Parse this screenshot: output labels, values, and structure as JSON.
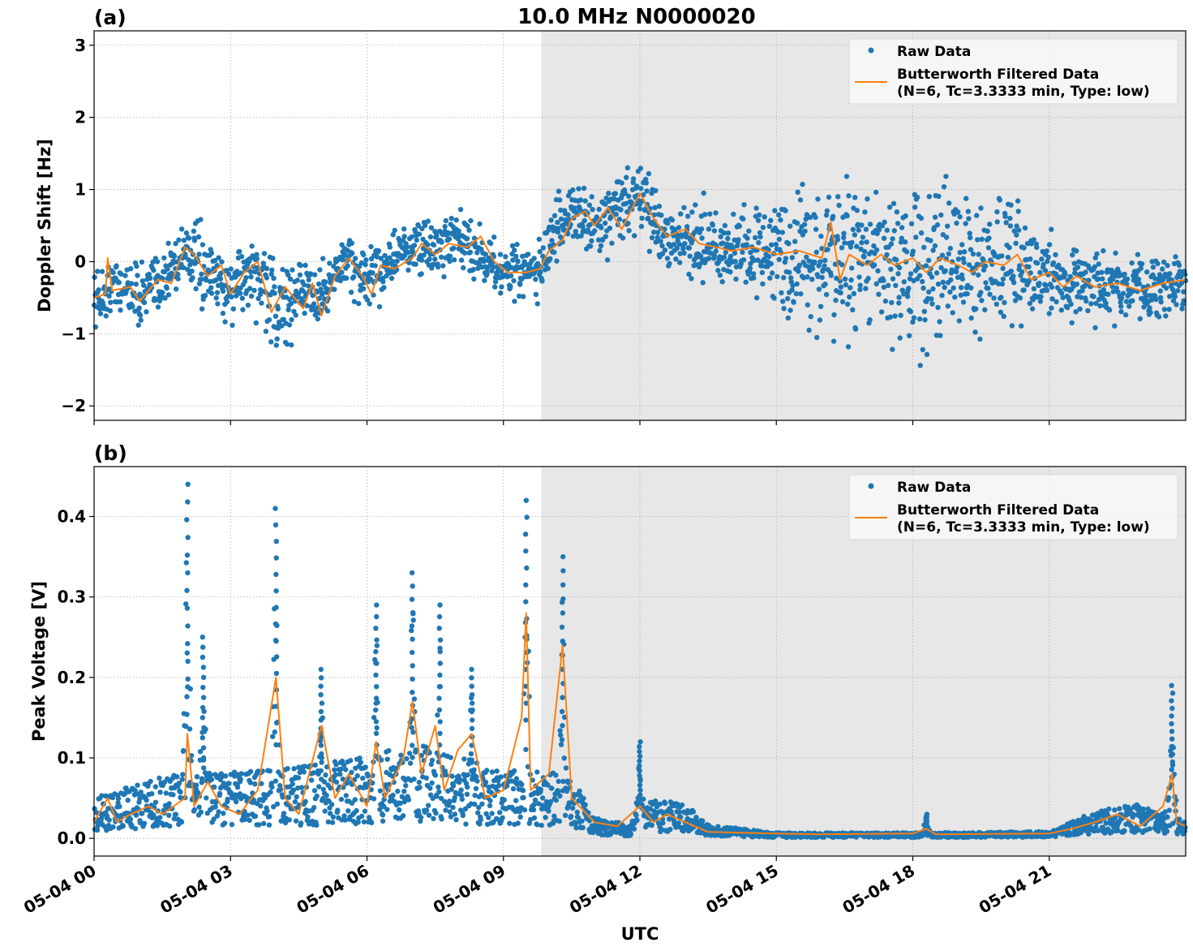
{
  "figure": {
    "title": "10.0 MHz N0000020",
    "xlabel": "UTC"
  },
  "colors": {
    "raw": "#1f77b4",
    "filtered": "#ff7f0e",
    "shade": "#e7e7e7",
    "grid": "#b0b0b0"
  },
  "legend": {
    "raw_label": "Raw Data",
    "filtered_label_line1": "Butterworth Filtered Data",
    "filtered_label_line2": "(N=6, Tc=3.3333 min, Type: low)"
  },
  "x_ticks": [
    {
      "hour": 0,
      "label": "05-04 00"
    },
    {
      "hour": 3,
      "label": "05-04 03"
    },
    {
      "hour": 6,
      "label": "05-04 06"
    },
    {
      "hour": 9,
      "label": "05-04 09"
    },
    {
      "hour": 12,
      "label": "05-04 12"
    },
    {
      "hour": 15,
      "label": "05-04 15"
    },
    {
      "hour": 18,
      "label": "05-04 18"
    },
    {
      "hour": 21,
      "label": "05-04 21"
    }
  ],
  "chart_data": [
    {
      "type": "scatter",
      "panel_label": "(a)",
      "ylabel": "Doppler Shift [Hz]",
      "xlim_hours": [
        0,
        24
      ],
      "ylim": [
        -2.2,
        3.2
      ],
      "yticks": [
        {
          "value": 3,
          "label": "3"
        },
        {
          "value": 2,
          "label": "2"
        },
        {
          "value": 1,
          "label": "1"
        },
        {
          "value": 0,
          "label": "0"
        },
        {
          "value": -1,
          "label": "−1"
        },
        {
          "value": -2,
          "label": "−2"
        }
      ],
      "grid": true,
      "legend_position": "top-right",
      "shaded_span_hours": [
        9.83,
        24
      ],
      "series": [
        {
          "name": "Raw Data",
          "style": "markers",
          "center": [
            [
              0,
              -0.55
            ],
            [
              0.5,
              -0.3
            ],
            [
              1,
              -0.45
            ],
            [
              1.5,
              -0.3
            ],
            [
              2,
              0.2
            ],
            [
              2.5,
              -0.2
            ],
            [
              3,
              -0.35
            ],
            [
              3.5,
              -0.1
            ],
            [
              4,
              -0.7
            ],
            [
              4.5,
              -0.4
            ],
            [
              5,
              -0.5
            ],
            [
              5.5,
              0.05
            ],
            [
              6,
              -0.3
            ],
            [
              6.5,
              0.0
            ],
            [
              7,
              0.2
            ],
            [
              7.5,
              0.15
            ],
            [
              8,
              0.3
            ],
            [
              8.5,
              0.1
            ],
            [
              9,
              -0.15
            ],
            [
              9.8,
              -0.1
            ],
            [
              10.2,
              0.5
            ],
            [
              10.6,
              0.65
            ],
            [
              11,
              0.5
            ],
            [
              11.5,
              0.7
            ],
            [
              12,
              0.9
            ],
            [
              12.5,
              0.4
            ],
            [
              13,
              0.3
            ],
            [
              14,
              0.15
            ],
            [
              15,
              0.1
            ],
            [
              16,
              0.05
            ],
            [
              17,
              0.0
            ],
            [
              18,
              -0.05
            ],
            [
              19,
              -0.05
            ],
            [
              20,
              -0.1
            ],
            [
              21,
              -0.2
            ],
            [
              22,
              -0.3
            ],
            [
              23,
              -0.35
            ],
            [
              24,
              -0.3
            ]
          ],
          "spread": [
            [
              0,
              0.4
            ],
            [
              4,
              0.6
            ],
            [
              5,
              0.45
            ],
            [
              9,
              0.35
            ],
            [
              10,
              0.4
            ],
            [
              12,
              0.45
            ],
            [
              14,
              0.55
            ],
            [
              15,
              0.8
            ],
            [
              16,
              1.1
            ],
            [
              17,
              1.0
            ],
            [
              18.5,
              1.2
            ],
            [
              20,
              1.0
            ],
            [
              21,
              0.5
            ],
            [
              24,
              0.4
            ]
          ]
        },
        {
          "name": "Butterworth Filtered Data",
          "style": "line",
          "values": [
            [
              0,
              -0.5
            ],
            [
              0.25,
              -0.45
            ],
            [
              0.3,
              0.05
            ],
            [
              0.4,
              -0.4
            ],
            [
              0.8,
              -0.35
            ],
            [
              1.0,
              -0.55
            ],
            [
              1.4,
              -0.25
            ],
            [
              1.7,
              -0.3
            ],
            [
              2.0,
              0.2
            ],
            [
              2.2,
              0.1
            ],
            [
              2.5,
              -0.2
            ],
            [
              2.8,
              -0.05
            ],
            [
              3.0,
              -0.45
            ],
            [
              3.3,
              -0.15
            ],
            [
              3.6,
              0.0
            ],
            [
              3.9,
              -0.7
            ],
            [
              4.2,
              -0.35
            ],
            [
              4.6,
              -0.65
            ],
            [
              4.8,
              -0.3
            ],
            [
              5.0,
              -0.75
            ],
            [
              5.3,
              -0.2
            ],
            [
              5.6,
              0.05
            ],
            [
              5.9,
              -0.2
            ],
            [
              6.1,
              -0.45
            ],
            [
              6.3,
              -0.05
            ],
            [
              6.6,
              -0.1
            ],
            [
              7.0,
              0.05
            ],
            [
              7.2,
              0.25
            ],
            [
              7.5,
              0.1
            ],
            [
              7.8,
              0.25
            ],
            [
              8.2,
              0.2
            ],
            [
              8.5,
              0.35
            ],
            [
              8.8,
              0.0
            ],
            [
              9.1,
              -0.15
            ],
            [
              9.5,
              -0.15
            ],
            [
              9.8,
              -0.1
            ],
            [
              10.0,
              0.15
            ],
            [
              10.3,
              0.3
            ],
            [
              10.5,
              0.6
            ],
            [
              10.8,
              0.7
            ],
            [
              11.0,
              0.5
            ],
            [
              11.3,
              0.75
            ],
            [
              11.6,
              0.45
            ],
            [
              12.0,
              0.95
            ],
            [
              12.3,
              0.6
            ],
            [
              12.6,
              0.35
            ],
            [
              13.0,
              0.45
            ],
            [
              13.3,
              0.25
            ],
            [
              13.7,
              0.2
            ],
            [
              14.0,
              0.15
            ],
            [
              14.5,
              0.2
            ],
            [
              15.0,
              0.1
            ],
            [
              15.5,
              0.15
            ],
            [
              16.0,
              0.05
            ],
            [
              16.2,
              0.55
            ],
            [
              16.4,
              -0.25
            ],
            [
              16.6,
              0.1
            ],
            [
              17.0,
              -0.05
            ],
            [
              17.3,
              0.1
            ],
            [
              17.6,
              -0.05
            ],
            [
              18.0,
              0.05
            ],
            [
              18.3,
              -0.15
            ],
            [
              18.6,
              0.05
            ],
            [
              19.0,
              -0.05
            ],
            [
              19.3,
              -0.15
            ],
            [
              19.6,
              0.0
            ],
            [
              20.0,
              -0.05
            ],
            [
              20.3,
              0.1
            ],
            [
              20.6,
              -0.25
            ],
            [
              21.0,
              -0.15
            ],
            [
              21.3,
              -0.35
            ],
            [
              21.6,
              -0.2
            ],
            [
              22.0,
              -0.35
            ],
            [
              22.5,
              -0.3
            ],
            [
              23.0,
              -0.4
            ],
            [
              23.5,
              -0.3
            ],
            [
              24.0,
              -0.25
            ]
          ]
        }
      ]
    },
    {
      "type": "scatter",
      "panel_label": "(b)",
      "ylabel": "Peak Voltage [V]",
      "xlim_hours": [
        0,
        24
      ],
      "ylim": [
        -0.022,
        0.462
      ],
      "yticks": [
        {
          "value": 0.4,
          "label": "0.4"
        },
        {
          "value": 0.3,
          "label": "0.3"
        },
        {
          "value": 0.2,
          "label": "0.2"
        },
        {
          "value": 0.1,
          "label": "0.1"
        },
        {
          "value": 0.0,
          "label": "0.0"
        }
      ],
      "grid": true,
      "legend_position": "top-right",
      "shaded_span_hours": [
        9.83,
        24
      ],
      "series": [
        {
          "name": "Raw Data",
          "style": "markers",
          "base": [
            [
              0,
              0.03
            ],
            [
              2,
              0.05
            ],
            [
              4,
              0.05
            ],
            [
              6,
              0.06
            ],
            [
              7,
              0.07
            ],
            [
              8,
              0.06
            ],
            [
              9,
              0.05
            ],
            [
              10,
              0.05
            ],
            [
              10.6,
              0.04
            ],
            [
              11,
              0.015
            ],
            [
              11.8,
              0.01
            ],
            [
              12,
              0.03
            ],
            [
              13,
              0.025
            ],
            [
              13.5,
              0.01
            ],
            [
              15,
              0.004
            ],
            [
              18,
              0.004
            ],
            [
              21,
              0.005
            ],
            [
              22,
              0.02
            ],
            [
              23,
              0.025
            ],
            [
              24,
              0.015
            ]
          ],
          "peaks": [
            [
              2.05,
              0.44
            ],
            [
              2.4,
              0.25
            ],
            [
              4.0,
              0.41
            ],
            [
              5.0,
              0.21
            ],
            [
              6.2,
              0.29
            ],
            [
              7.0,
              0.33
            ],
            [
              7.6,
              0.29
            ],
            [
              8.3,
              0.21
            ],
            [
              9.5,
              0.42
            ],
            [
              10.3,
              0.35
            ],
            [
              12.0,
              0.12
            ],
            [
              18.3,
              0.03
            ],
            [
              23.7,
              0.19
            ]
          ]
        },
        {
          "name": "Butterworth Filtered Data",
          "style": "line",
          "values": [
            [
              0,
              0.02
            ],
            [
              0.3,
              0.05
            ],
            [
              0.5,
              0.02
            ],
            [
              0.8,
              0.03
            ],
            [
              1.2,
              0.04
            ],
            [
              1.5,
              0.03
            ],
            [
              2.0,
              0.05
            ],
            [
              2.05,
              0.13
            ],
            [
              2.2,
              0.04
            ],
            [
              2.5,
              0.07
            ],
            [
              2.8,
              0.04
            ],
            [
              3.2,
              0.03
            ],
            [
              3.6,
              0.06
            ],
            [
              4.0,
              0.2
            ],
            [
              4.2,
              0.05
            ],
            [
              4.5,
              0.03
            ],
            [
              5.0,
              0.14
            ],
            [
              5.3,
              0.05
            ],
            [
              5.6,
              0.08
            ],
            [
              6.0,
              0.04
            ],
            [
              6.2,
              0.12
            ],
            [
              6.4,
              0.05
            ],
            [
              6.8,
              0.1
            ],
            [
              7.0,
              0.17
            ],
            [
              7.2,
              0.08
            ],
            [
              7.5,
              0.14
            ],
            [
              7.7,
              0.06
            ],
            [
              8.0,
              0.11
            ],
            [
              8.3,
              0.13
            ],
            [
              8.6,
              0.05
            ],
            [
              9.0,
              0.06
            ],
            [
              9.4,
              0.15
            ],
            [
              9.5,
              0.28
            ],
            [
              9.6,
              0.06
            ],
            [
              10.0,
              0.08
            ],
            [
              10.3,
              0.24
            ],
            [
              10.5,
              0.05
            ],
            [
              11.0,
              0.02
            ],
            [
              11.5,
              0.015
            ],
            [
              12.0,
              0.04
            ],
            [
              12.3,
              0.02
            ],
            [
              12.6,
              0.03
            ],
            [
              13.0,
              0.02
            ],
            [
              13.5,
              0.008
            ],
            [
              15.0,
              0.006
            ],
            [
              16.0,
              0.005
            ],
            [
              18.0,
              0.006
            ],
            [
              18.3,
              0.012
            ],
            [
              18.5,
              0.005
            ],
            [
              21.0,
              0.006
            ],
            [
              21.5,
              0.012
            ],
            [
              22.0,
              0.02
            ],
            [
              22.5,
              0.03
            ],
            [
              23.0,
              0.015
            ],
            [
              23.5,
              0.04
            ],
            [
              23.7,
              0.08
            ],
            [
              23.8,
              0.02
            ],
            [
              24.0,
              0.015
            ]
          ]
        }
      ]
    }
  ]
}
